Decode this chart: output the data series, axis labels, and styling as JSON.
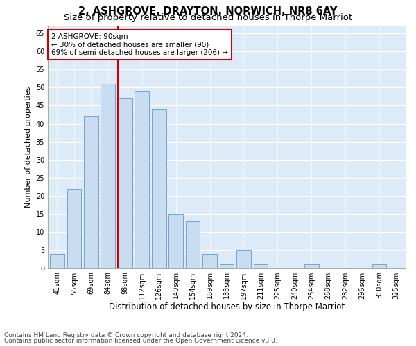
{
  "title1": "2, ASHGROVE, DRAYTON, NORWICH, NR8 6AY",
  "title2": "Size of property relative to detached houses in Thorpe Marriot",
  "xlabel": "Distribution of detached houses by size in Thorpe Marriot",
  "ylabel": "Number of detached properties",
  "categories": [
    "41sqm",
    "55sqm",
    "69sqm",
    "84sqm",
    "98sqm",
    "112sqm",
    "126sqm",
    "140sqm",
    "154sqm",
    "169sqm",
    "183sqm",
    "197sqm",
    "211sqm",
    "225sqm",
    "240sqm",
    "254sqm",
    "268sqm",
    "282sqm",
    "296sqm",
    "310sqm",
    "325sqm"
  ],
  "values": [
    4,
    22,
    42,
    51,
    47,
    49,
    44,
    15,
    13,
    4,
    1,
    5,
    1,
    0,
    0,
    1,
    0,
    0,
    0,
    1,
    0
  ],
  "bar_color": "#c8ddf0",
  "bar_edge_color": "#6699cc",
  "vline_x": 3.57,
  "vline_color": "#cc0000",
  "annotation_text": "2 ASHGROVE: 90sqm\n← 30% of detached houses are smaller (90)\n69% of semi-detached houses are larger (206) →",
  "annotation_box_color": "#ffffff",
  "annotation_box_edge": "#cc0000",
  "ylim": [
    0,
    67
  ],
  "yticks": [
    0,
    5,
    10,
    15,
    20,
    25,
    30,
    35,
    40,
    45,
    50,
    55,
    60,
    65
  ],
  "background_color": "#ddeaf7",
  "footer1": "Contains HM Land Registry data © Crown copyright and database right 2024.",
  "footer2": "Contains public sector information licensed under the Open Government Licence v3.0.",
  "title1_fontsize": 10.5,
  "title2_fontsize": 9.5,
  "xlabel_fontsize": 8.5,
  "ylabel_fontsize": 8,
  "tick_fontsize": 7,
  "footer_fontsize": 6.5,
  "ann_fontsize": 7.5
}
